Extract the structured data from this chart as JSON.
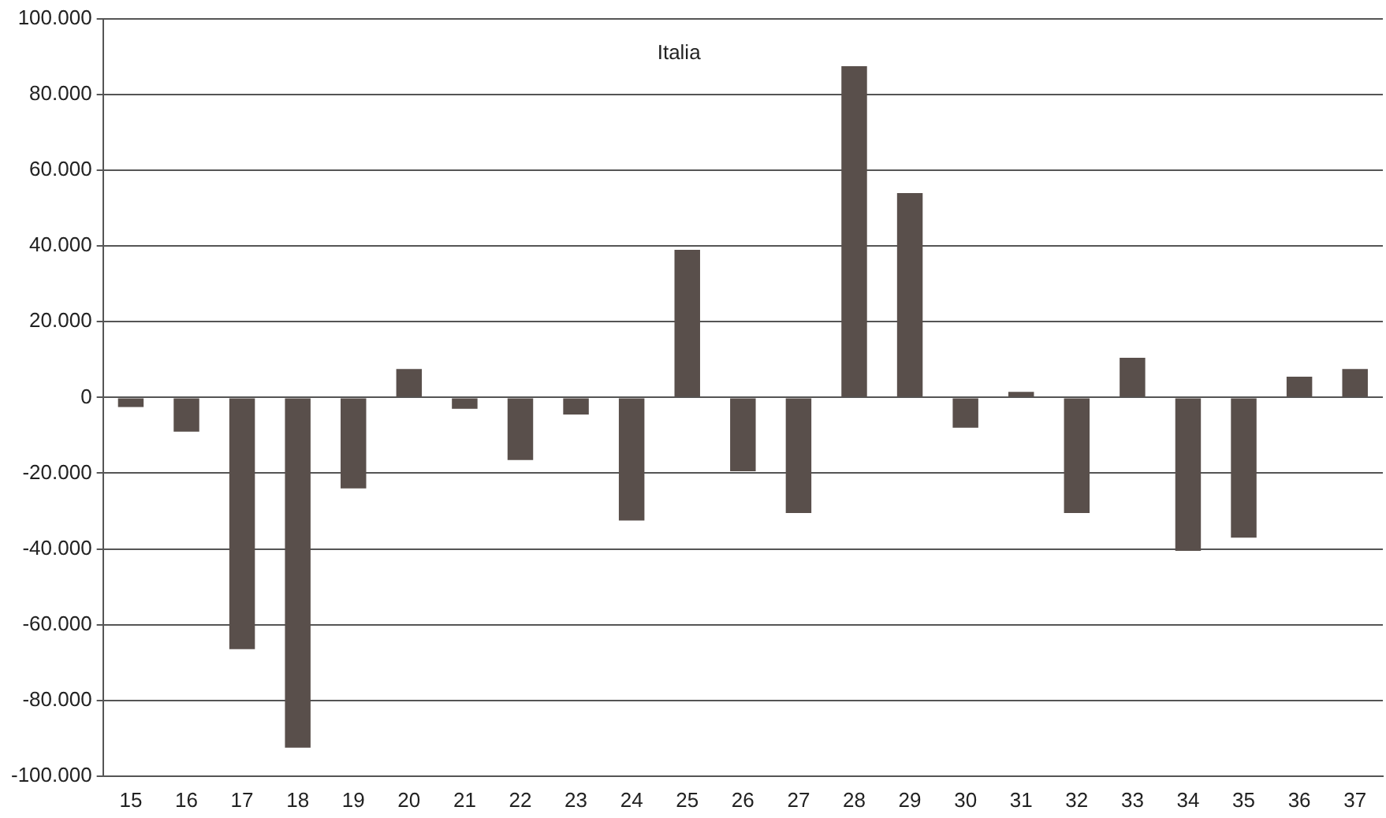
{
  "chart_data": {
    "type": "bar",
    "title": "Italia",
    "categories": [
      "15",
      "16",
      "17",
      "18",
      "19",
      "20",
      "21",
      "22",
      "23",
      "24",
      "25",
      "26",
      "27",
      "28",
      "29",
      "30",
      "31",
      "32",
      "33",
      "34",
      "35",
      "36",
      "37"
    ],
    "values": [
      -2500,
      -9000,
      -66500,
      -92500,
      -24000,
      7500,
      -3000,
      -16500,
      -4500,
      -32500,
      39000,
      -19500,
      -30500,
      87500,
      54000,
      -8000,
      1500,
      -30500,
      10500,
      -40500,
      -37000,
      5500,
      7500
    ],
    "color": "#594f4b",
    "ylim": [
      -100000,
      100000
    ],
    "yticks": [
      {
        "value": -100000,
        "label": "-100.000"
      },
      {
        "value": -80000,
        "label": "-80.000"
      },
      {
        "value": -60000,
        "label": "-60.000"
      },
      {
        "value": -40000,
        "label": "-40.000"
      },
      {
        "value": -20000,
        "label": "-20.000"
      },
      {
        "value": 0,
        "label": "0"
      },
      {
        "value": 20000,
        "label": "20.000"
      },
      {
        "value": 40000,
        "label": "40.000"
      },
      {
        "value": 60000,
        "label": "60.000"
      },
      {
        "value": 80000,
        "label": "80.000"
      },
      {
        "value": 100000,
        "label": "100.000"
      }
    ],
    "grid": "y",
    "legend": false
  }
}
